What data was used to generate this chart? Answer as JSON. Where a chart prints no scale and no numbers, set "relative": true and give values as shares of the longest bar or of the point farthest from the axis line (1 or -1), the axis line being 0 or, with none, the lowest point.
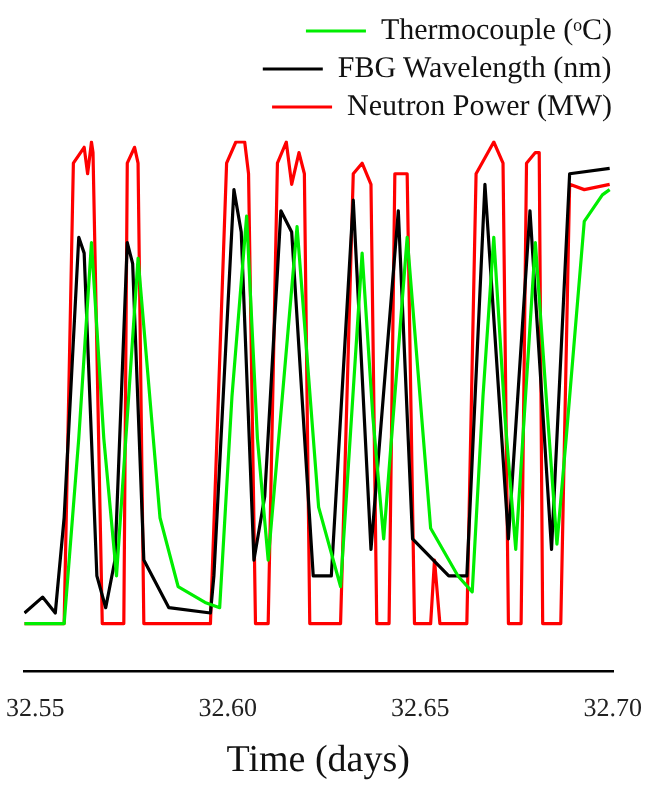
{
  "chart_data": {
    "type": "line",
    "xlabel": "Time (days)",
    "relative": true,
    "legend": "top right",
    "marker": "none",
    "line_style": "solid",
    "grid": false,
    "xlim": [
      32.547,
      32.7
    ],
    "xticks": [
      32.55,
      {
        "value": 32.6,
        "label": "32.60"
      },
      32.65,
      {
        "value": 32.7,
        "label": "32.70"
      }
    ],
    "series": [
      {
        "name": "Neutron Power (MW)",
        "color": "#ff0000",
        "x": [
          32.5472,
          32.5575,
          32.5599,
          32.5627,
          32.5636,
          32.5646,
          32.565,
          32.5674,
          32.573,
          32.5739,
          32.5758,
          32.5767,
          32.5782,
          32.5955,
          32.5997,
          32.6021,
          32.6044,
          32.6054,
          32.6072,
          32.6105,
          32.6129,
          32.6152,
          32.6166,
          32.6185,
          32.6199,
          32.6213,
          32.6293,
          32.6326,
          32.6349,
          32.6372,
          32.6387,
          32.6419,
          32.6434,
          32.6466,
          32.6485,
          32.6527,
          32.6537,
          32.6551,
          32.6621,
          32.6645,
          32.6691,
          32.6715,
          32.6729,
          32.6762,
          32.6776,
          32.6799,
          32.6809,
          32.6818,
          32.6865,
          32.6888,
          32.6926,
          32.6992
        ],
        "values": [
          0.09,
          0.09,
          0.96,
          0.99,
          0.94,
          1,
          0.98,
          0.09,
          0.09,
          0.96,
          0.99,
          0.96,
          0.09,
          0.09,
          0.96,
          1,
          1,
          0.94,
          0.09,
          0.09,
          0.96,
          1,
          0.92,
          0.98,
          0.94,
          0.09,
          0.09,
          0.94,
          0.96,
          0.92,
          0.09,
          0.09,
          0.94,
          0.94,
          0.09,
          0.09,
          0.21,
          0.09,
          0.09,
          0.94,
          1,
          0.96,
          0.09,
          0.09,
          0.96,
          0.98,
          0.98,
          0.09,
          0.09,
          0.92,
          0.91,
          0.92
        ]
      },
      {
        "name": "FBG Wavelength (nm)",
        "type": "line",
        "color": "#000000",
        "x": [
          32.5472,
          32.5519,
          32.5552,
          32.5575,
          32.5613,
          32.5627,
          32.566,
          32.5683,
          32.5707,
          32.5739,
          32.5753,
          32.5782,
          32.5847,
          32.5955,
          32.5964,
          32.6016,
          32.6035,
          32.6068,
          32.6096,
          32.6138,
          32.6166,
          32.6222,
          32.6269,
          32.6326,
          32.6372,
          32.6443,
          32.648,
          32.6574,
          32.6621,
          32.6668,
          32.6729,
          32.6785,
          32.6841,
          32.6888,
          32.6992
        ],
        "values": [
          0.11,
          0.14,
          0.11,
          0.29,
          0.82,
          0.79,
          0.18,
          0.12,
          0.21,
          0.81,
          0.77,
          0.21,
          0.12,
          0.11,
          0.18,
          0.91,
          0.83,
          0.21,
          0.33,
          0.87,
          0.83,
          0.18,
          0.18,
          0.89,
          0.23,
          0.87,
          0.25,
          0.18,
          0.18,
          0.92,
          0.25,
          0.87,
          0.23,
          0.94,
          0.95
        ]
      },
      {
        "name": "Thermocouple (ᵒC)",
        "color": "#00ee00",
        "x": [
          32.5472,
          32.5575,
          32.5613,
          32.5646,
          32.5678,
          32.5711,
          32.5767,
          32.5824,
          32.5871,
          32.5941,
          32.5979,
          32.6011,
          32.6049,
          32.6077,
          32.6105,
          32.618,
          32.6236,
          32.6293,
          32.6349,
          32.6377,
          32.6405,
          32.6466,
          32.6527,
          32.6598,
          32.6635,
          32.6663,
          32.6691,
          32.672,
          32.6748,
          32.6799,
          32.6827,
          32.6855,
          32.6879,
          32.6926,
          32.6973,
          32.6992
        ],
        "values": [
          0.09,
          0.09,
          0.44,
          0.81,
          0.44,
          0.18,
          0.78,
          0.29,
          0.16,
          0.13,
          0.12,
          0.52,
          0.86,
          0.44,
          0.21,
          0.84,
          0.31,
          0.16,
          0.79,
          0.48,
          0.25,
          0.82,
          0.27,
          0.18,
          0.15,
          0.52,
          0.82,
          0.48,
          0.23,
          0.81,
          0.52,
          0.24,
          0.44,
          0.85,
          0.9,
          0.91
        ]
      }
    ]
  }
}
